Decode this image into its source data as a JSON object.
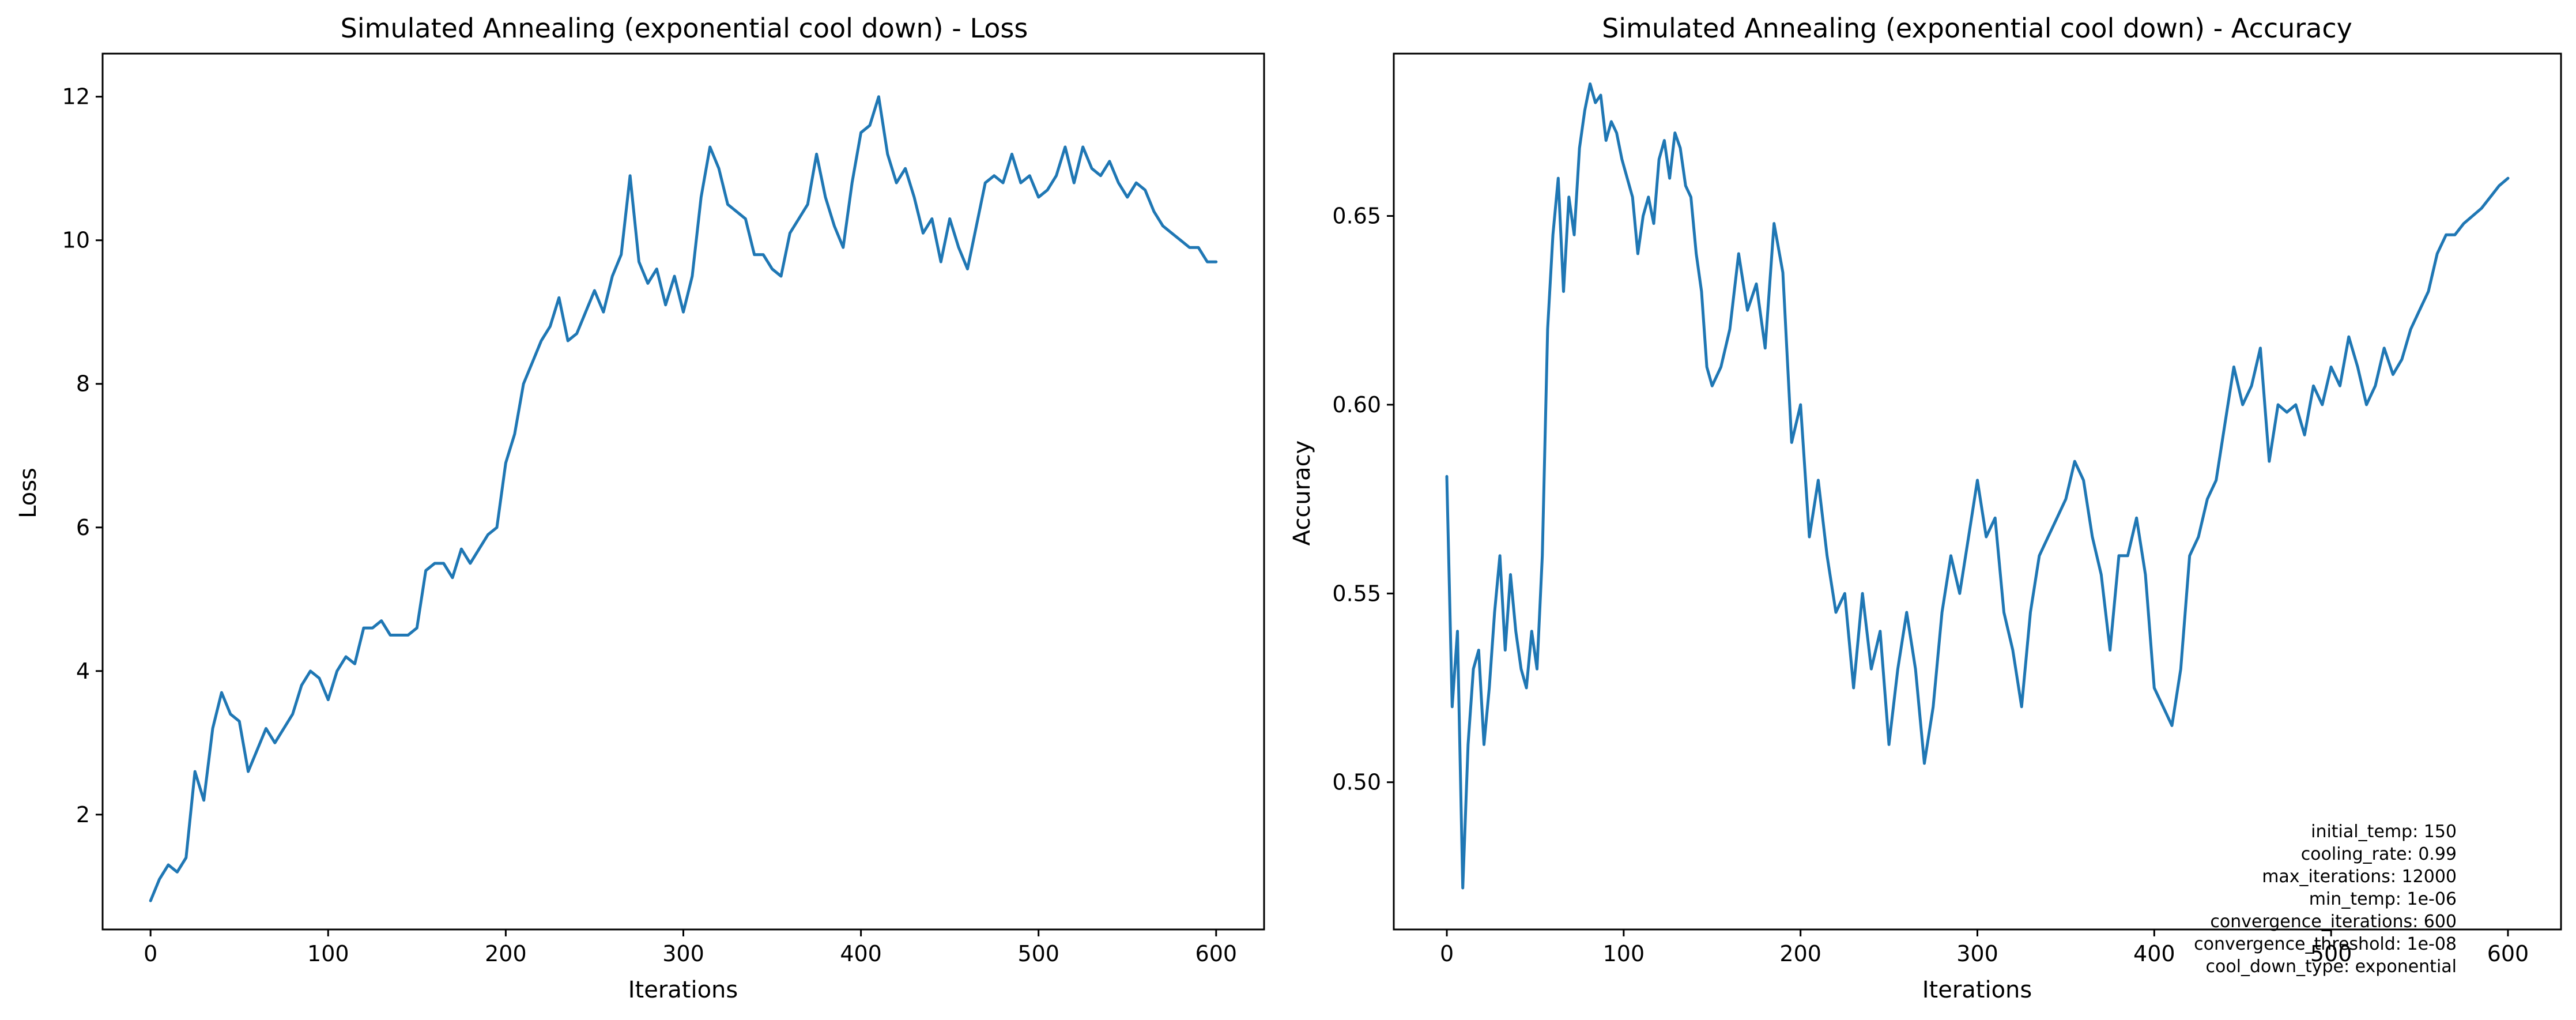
{
  "chart_data": [
    {
      "type": "line",
      "title": "Simulated Annealing (exponential cool down) - Loss",
      "xlabel": "Iterations",
      "ylabel": "Loss",
      "xlim": [
        -27,
        627
      ],
      "ylim": [
        0.4,
        12.6
      ],
      "x_ticks": [
        0,
        100,
        200,
        300,
        400,
        500,
        600
      ],
      "x_tick_labels": [
        "0",
        "100",
        "200",
        "300",
        "400",
        "500",
        "600"
      ],
      "y_ticks": [
        2,
        4,
        6,
        8,
        10,
        12
      ],
      "y_tick_labels": [
        "2",
        "4",
        "6",
        "8",
        "10",
        "12"
      ],
      "grid": false,
      "color": "#1f77b4",
      "series": [
        {
          "x": [
            0,
            5,
            10,
            15,
            20,
            25,
            30,
            35,
            40,
            45,
            50,
            55,
            60,
            65,
            70,
            75,
            80,
            85,
            90,
            95,
            100,
            105,
            110,
            115,
            120,
            125,
            130,
            135,
            140,
            145,
            150,
            155,
            160,
            165,
            170,
            175,
            180,
            185,
            190,
            195,
            200,
            205,
            210,
            215,
            220,
            225,
            230,
            235,
            240,
            245,
            250,
            255,
            260,
            265,
            270,
            275,
            280,
            285,
            290,
            295,
            300,
            305,
            310,
            315,
            320,
            325,
            330,
            335,
            340,
            345,
            350,
            355,
            360,
            365,
            370,
            375,
            380,
            385,
            390,
            395,
            400,
            405,
            410,
            415,
            420,
            425,
            430,
            435,
            440,
            445,
            450,
            455,
            460,
            465,
            470,
            475,
            480,
            485,
            490,
            495,
            500,
            505,
            510,
            515,
            520,
            525,
            530,
            535,
            540,
            545,
            550,
            555,
            560,
            565,
            570,
            575,
            580,
            585,
            590,
            595,
            600
          ],
          "y": [
            0.8,
            1.1,
            1.3,
            1.2,
            1.4,
            2.6,
            2.2,
            3.2,
            3.7,
            3.4,
            3.3,
            2.6,
            2.9,
            3.2,
            3.0,
            3.2,
            3.4,
            3.8,
            4.0,
            3.9,
            3.6,
            4.0,
            4.2,
            4.1,
            4.6,
            4.6,
            4.7,
            4.5,
            4.5,
            4.5,
            4.6,
            5.4,
            5.5,
            5.5,
            5.3,
            5.7,
            5.5,
            5.7,
            5.9,
            6.0,
            6.9,
            7.3,
            8.0,
            8.3,
            8.6,
            8.8,
            9.2,
            8.6,
            8.7,
            9.0,
            9.3,
            9.0,
            9.5,
            9.8,
            10.9,
            9.7,
            9.4,
            9.6,
            9.1,
            9.5,
            9.0,
            9.5,
            10.6,
            11.3,
            11.0,
            10.5,
            10.4,
            10.3,
            9.8,
            9.8,
            9.6,
            9.5,
            10.1,
            10.3,
            10.5,
            11.2,
            10.6,
            10.2,
            9.9,
            10.8,
            11.5,
            11.6,
            12.0,
            11.2,
            10.8,
            11.0,
            10.6,
            10.1,
            10.3,
            9.7,
            10.3,
            9.9,
            9.6,
            10.2,
            10.8,
            10.9,
            10.8,
            11.2,
            10.8,
            10.9,
            10.6,
            10.7,
            10.9,
            11.3,
            10.8,
            11.3,
            11.0,
            10.9,
            11.1,
            10.8,
            10.6,
            10.8,
            10.7,
            10.4,
            10.2,
            10.1,
            10.0,
            9.9,
            9.9,
            9.7,
            9.7
          ]
        }
      ]
    },
    {
      "type": "line",
      "title": "Simulated Annealing (exponential cool down) - Accuracy",
      "xlabel": "Iterations",
      "ylabel": "Accuracy",
      "xlim": [
        -30,
        630
      ],
      "ylim": [
        0.461,
        0.693
      ],
      "x_ticks": [
        0,
        100,
        200,
        300,
        400,
        500,
        600
      ],
      "x_tick_labels": [
        "0",
        "100",
        "200",
        "300",
        "400",
        "500",
        "600"
      ],
      "y_ticks": [
        0.5,
        0.55,
        0.6,
        0.65
      ],
      "y_tick_labels": [
        "0.50",
        "0.55",
        "0.60",
        "0.65"
      ],
      "grid": false,
      "color": "#1f77b4",
      "series": [
        {
          "x": [
            0,
            3,
            6,
            9,
            12,
            15,
            18,
            21,
            24,
            27,
            30,
            33,
            36,
            39,
            42,
            45,
            48,
            51,
            54,
            57,
            60,
            63,
            66,
            69,
            72,
            75,
            78,
            81,
            84,
            87,
            90,
            93,
            96,
            99,
            102,
            105,
            108,
            111,
            114,
            117,
            120,
            123,
            126,
            129,
            132,
            135,
            138,
            141,
            144,
            147,
            150,
            155,
            160,
            165,
            170,
            175,
            180,
            185,
            190,
            195,
            200,
            205,
            210,
            215,
            220,
            225,
            230,
            235,
            240,
            245,
            250,
            255,
            260,
            265,
            270,
            275,
            280,
            285,
            290,
            295,
            300,
            305,
            310,
            315,
            320,
            325,
            330,
            335,
            340,
            345,
            350,
            355,
            360,
            365,
            370,
            375,
            380,
            385,
            390,
            395,
            400,
            405,
            410,
            415,
            420,
            425,
            430,
            435,
            440,
            445,
            450,
            455,
            460,
            465,
            470,
            475,
            480,
            485,
            490,
            495,
            500,
            505,
            510,
            515,
            520,
            525,
            530,
            535,
            540,
            545,
            550,
            555,
            560,
            565,
            570,
            575,
            580,
            585,
            590,
            595,
            600
          ],
          "y": [
            0.581,
            0.52,
            0.54,
            0.472,
            0.51,
            0.53,
            0.535,
            0.51,
            0.525,
            0.545,
            0.56,
            0.535,
            0.555,
            0.54,
            0.53,
            0.525,
            0.54,
            0.53,
            0.56,
            0.62,
            0.645,
            0.66,
            0.63,
            0.655,
            0.645,
            0.668,
            0.678,
            0.685,
            0.68,
            0.682,
            0.67,
            0.675,
            0.672,
            0.665,
            0.66,
            0.655,
            0.64,
            0.65,
            0.655,
            0.648,
            0.665,
            0.67,
            0.66,
            0.672,
            0.668,
            0.658,
            0.655,
            0.64,
            0.63,
            0.61,
            0.605,
            0.61,
            0.62,
            0.64,
            0.625,
            0.632,
            0.615,
            0.648,
            0.635,
            0.59,
            0.6,
            0.565,
            0.58,
            0.56,
            0.545,
            0.55,
            0.525,
            0.55,
            0.53,
            0.54,
            0.51,
            0.53,
            0.545,
            0.53,
            0.505,
            0.52,
            0.545,
            0.56,
            0.55,
            0.565,
            0.58,
            0.565,
            0.57,
            0.545,
            0.535,
            0.52,
            0.545,
            0.56,
            0.565,
            0.57,
            0.575,
            0.585,
            0.58,
            0.565,
            0.555,
            0.535,
            0.56,
            0.56,
            0.57,
            0.555,
            0.525,
            0.52,
            0.515,
            0.53,
            0.56,
            0.565,
            0.575,
            0.58,
            0.595,
            0.61,
            0.6,
            0.605,
            0.615,
            0.585,
            0.6,
            0.598,
            0.6,
            0.592,
            0.605,
            0.6,
            0.61,
            0.605,
            0.618,
            0.61,
            0.6,
            0.605,
            0.615,
            0.608,
            0.612,
            0.62,
            0.625,
            0.63,
            0.64,
            0.645,
            0.645,
            0.648,
            0.65,
            0.652,
            0.655,
            0.658,
            0.66
          ]
        }
      ],
      "annotation_lines": [
        "initial_temp: 150",
        "cooling_rate: 0.99",
        "max_iterations: 12000",
        "min_temp: 1e-06",
        "convergence_iterations: 600",
        "convergence_threshold: 1e-08",
        "cool_down_type: exponential"
      ]
    }
  ]
}
